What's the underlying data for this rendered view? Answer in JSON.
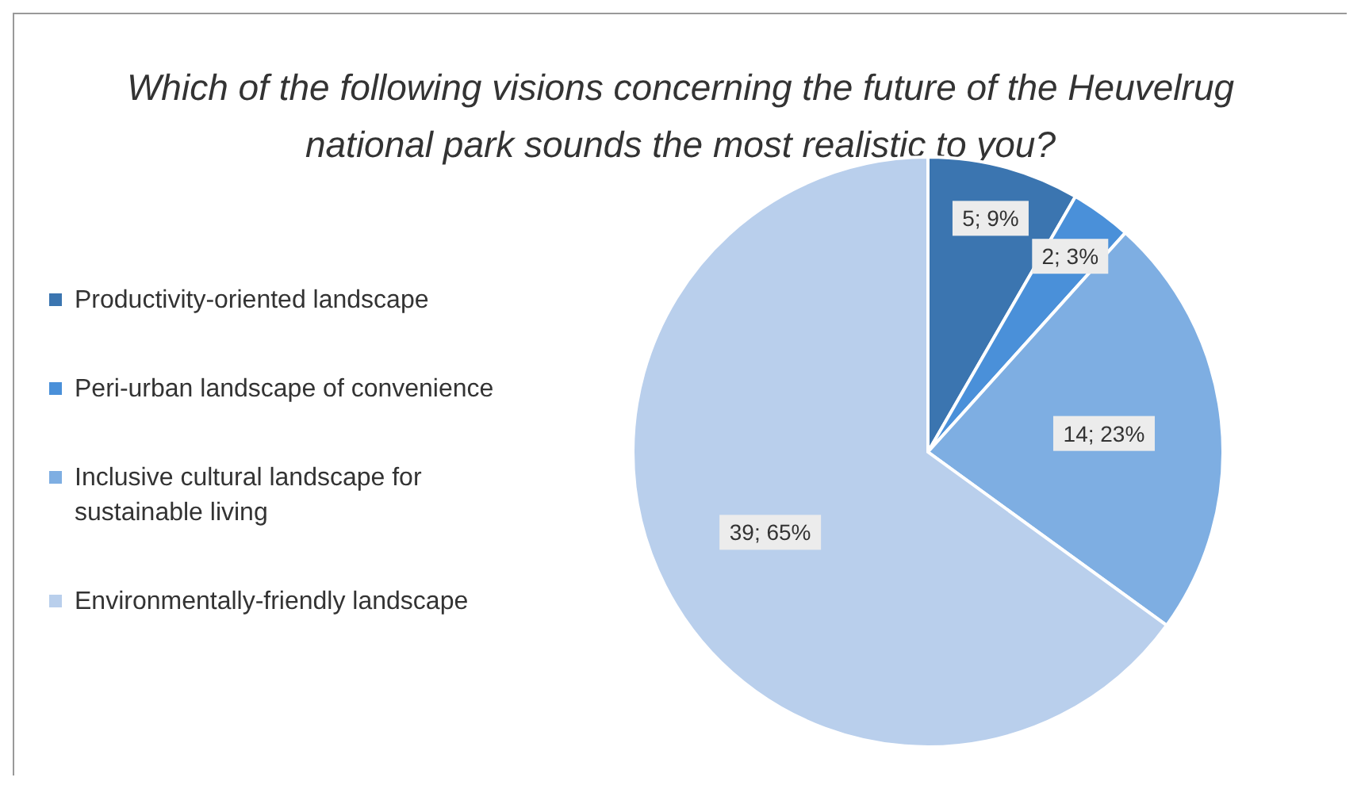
{
  "chart_data": {
    "type": "pie",
    "title": "Which of the following visions concerning the future of the Heuvelrug national park sounds the most realistic to you?",
    "categories": [
      "Productivity-oriented landscape",
      "Peri-urban landscape of convenience",
      "Inclusive cultural landscape for sustainable living",
      "Environmentally-friendly landscape"
    ],
    "values": [
      5,
      2,
      14,
      39
    ],
    "colors": [
      "#3b75b0",
      "#4a90d9",
      "#7eaee2",
      "#b9cfec"
    ],
    "value_labels": [
      "5; 9%",
      "2; 3%",
      "14; 23%",
      "39; 65%"
    ],
    "legend": "left"
  }
}
